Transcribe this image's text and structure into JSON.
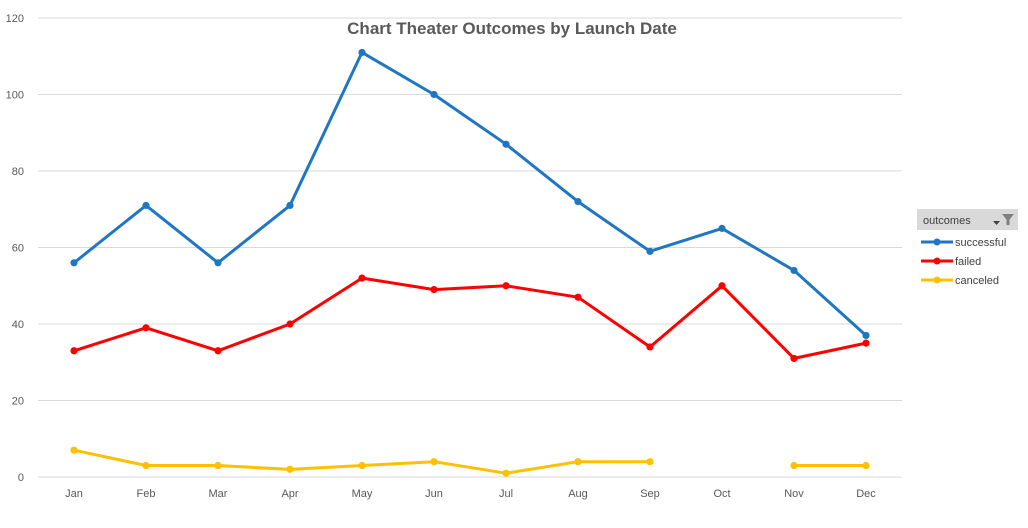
{
  "chart_data": {
    "type": "line",
    "title": "Chart Theater Outcomes by Launch Date",
    "categories": [
      "Jan",
      "Feb",
      "Mar",
      "Apr",
      "May",
      "Jun",
      "Jul",
      "Aug",
      "Sep",
      "Oct",
      "Nov",
      "Dec"
    ],
    "series": [
      {
        "name": "successful",
        "color": "#1f77c4",
        "values": [
          56,
          71,
          56,
          71,
          111,
          100,
          87,
          72,
          59,
          65,
          54,
          37
        ]
      },
      {
        "name": "failed",
        "color": "#ff0000",
        "values": [
          33,
          39,
          33,
          40,
          52,
          49,
          50,
          47,
          34,
          50,
          31,
          35
        ]
      },
      {
        "name": "canceled",
        "color": "#ffc000",
        "values": [
          7,
          3,
          3,
          2,
          3,
          4,
          1,
          4,
          4,
          null,
          3,
          3
        ]
      }
    ],
    "ylim": [
      0,
      120
    ],
    "yticks": [
      0,
      20,
      40,
      60,
      80,
      100,
      120
    ],
    "grid": true,
    "legend": {
      "title": "outcomes",
      "placement": "right",
      "filter_icon": "filter-dropdown-icon"
    }
  }
}
